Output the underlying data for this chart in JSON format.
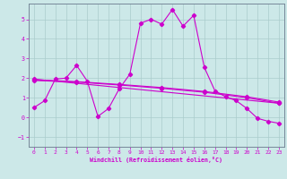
{
  "xlabel": "Windchill (Refroidissement éolien,°C)",
  "bg_color": "#cce8e8",
  "grid_color": "#aacccc",
  "line_color": "#cc00cc",
  "xlim": [
    -0.5,
    23.5
  ],
  "ylim": [
    -1.5,
    5.8
  ],
  "xticks": [
    0,
    1,
    2,
    3,
    4,
    5,
    6,
    7,
    8,
    9,
    10,
    11,
    12,
    13,
    14,
    15,
    16,
    17,
    18,
    19,
    20,
    21,
    22,
    23
  ],
  "yticks": [
    -1,
    0,
    1,
    2,
    3,
    4,
    5
  ],
  "line1_x": [
    0,
    1,
    2,
    3,
    4,
    5,
    6,
    7,
    8,
    9,
    10,
    11,
    12,
    13,
    14,
    15,
    16,
    17,
    18,
    19,
    20,
    21,
    22,
    23
  ],
  "line1_y": [
    0.5,
    0.85,
    1.95,
    2.0,
    2.65,
    1.85,
    0.05,
    0.45,
    1.45,
    2.2,
    4.8,
    5.0,
    4.75,
    5.5,
    4.65,
    5.2,
    2.55,
    1.35,
    1.05,
    0.85,
    0.45,
    -0.05,
    -0.2,
    -0.3
  ],
  "line2_x": [
    0,
    23
  ],
  "line2_y": [
    1.95,
    0.72
  ],
  "line3_x": [
    0,
    4,
    8,
    12,
    16,
    20,
    23
  ],
  "line3_y": [
    1.92,
    1.82,
    1.68,
    1.52,
    1.32,
    1.05,
    0.78
  ],
  "line4_x": [
    0,
    4,
    8,
    12,
    16,
    20,
    23
  ],
  "line4_y": [
    1.88,
    1.8,
    1.65,
    1.48,
    1.28,
    1.0,
    0.72
  ]
}
